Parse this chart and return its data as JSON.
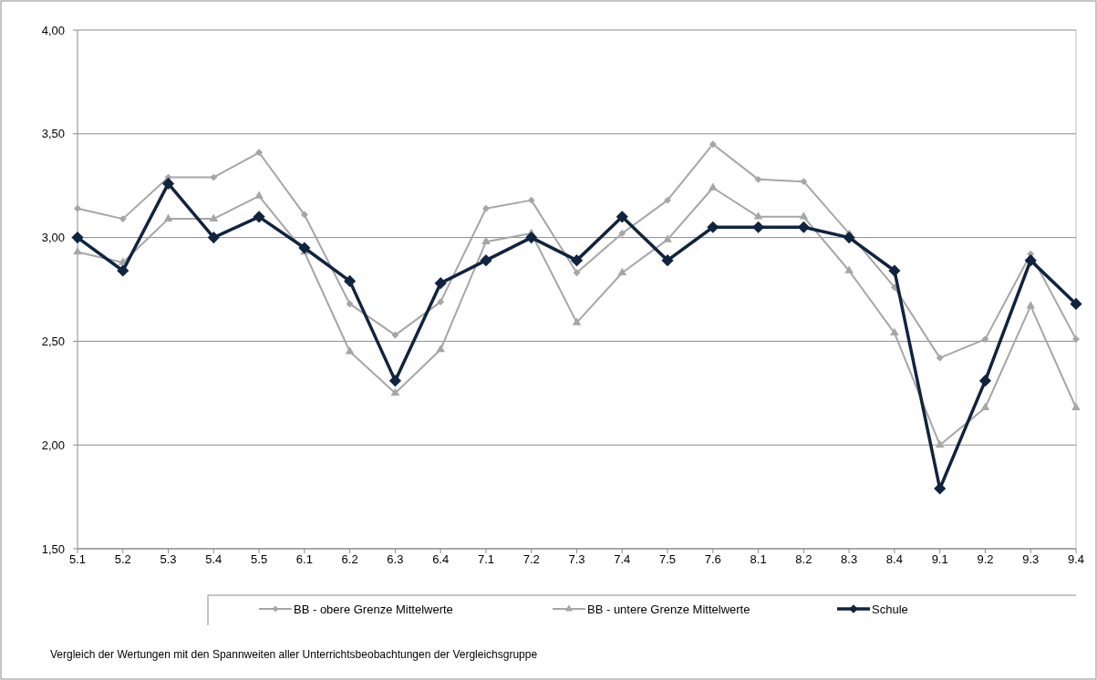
{
  "chart_data": {
    "type": "line",
    "categories": [
      "5.1",
      "5.2",
      "5.3",
      "5.4",
      "5.5",
      "6.1",
      "6.2",
      "6.3",
      "6.4",
      "7.1",
      "7.2",
      "7.3",
      "7.4",
      "7.5",
      "7.6",
      "8.1",
      "8.2",
      "8.3",
      "8.4",
      "9.1",
      "9.2",
      "9.3",
      "9.4"
    ],
    "series": [
      {
        "name": "BB - obere Grenze Mittelwerte",
        "color": "#a6a6a6",
        "marker": "diamond",
        "values": [
          3.14,
          3.09,
          3.29,
          3.29,
          3.41,
          3.11,
          2.68,
          2.53,
          2.69,
          3.14,
          3.18,
          2.83,
          3.02,
          3.18,
          3.45,
          3.28,
          3.27,
          3.02,
          2.76,
          2.42,
          2.51,
          2.92,
          2.51
        ]
      },
      {
        "name": "BB - untere Grenze Mittelwerte",
        "color": "#a6a6a6",
        "marker": "triangle",
        "values": [
          2.93,
          2.88,
          3.09,
          3.09,
          3.2,
          2.93,
          2.45,
          2.25,
          2.46,
          2.98,
          3.02,
          2.59,
          2.83,
          2.99,
          3.24,
          3.1,
          3.1,
          2.84,
          2.54,
          2.0,
          2.18,
          2.67,
          2.18
        ]
      },
      {
        "name": "Schule",
        "color": "#0f2440",
        "marker": "diamond",
        "values": [
          3.0,
          2.84,
          3.26,
          3.0,
          3.1,
          2.95,
          2.79,
          2.31,
          2.78,
          2.89,
          3.0,
          2.89,
          3.1,
          2.89,
          3.05,
          3.05,
          3.05,
          3.0,
          2.84,
          1.79,
          2.31,
          2.89,
          2.68
        ]
      }
    ],
    "ylim": [
      1.5,
      4.0
    ],
    "yticks": [
      {
        "value": 1.5,
        "label": "1,50"
      },
      {
        "value": 2.0,
        "label": "2,00"
      },
      {
        "value": 2.5,
        "label": "2,50"
      },
      {
        "value": 3.0,
        "label": "3,00"
      },
      {
        "value": 3.5,
        "label": "3,50"
      },
      {
        "value": 4.0,
        "label": "4,00"
      }
    ],
    "grid": "y",
    "legend": "bottom",
    "line_style": "solid",
    "annotations": [
      "Vergleich  der  Wertungen mit den Spannweiten  aller Unterrichtsbeobachtungen der Vergleichsgruppe"
    ]
  }
}
